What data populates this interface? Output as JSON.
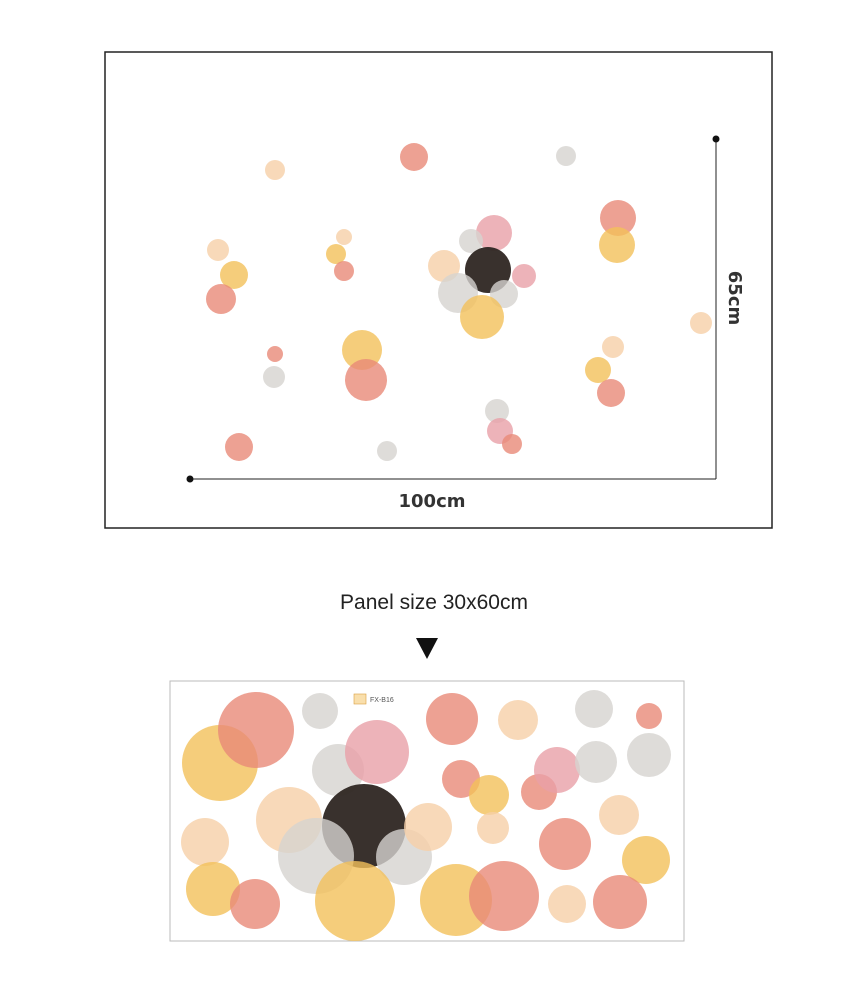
{
  "layout": {
    "width_label": "100cm",
    "height_label": "65cm"
  },
  "panel": {
    "caption": "Panel size 30x60cm",
    "code": "FX-B16"
  }
}
